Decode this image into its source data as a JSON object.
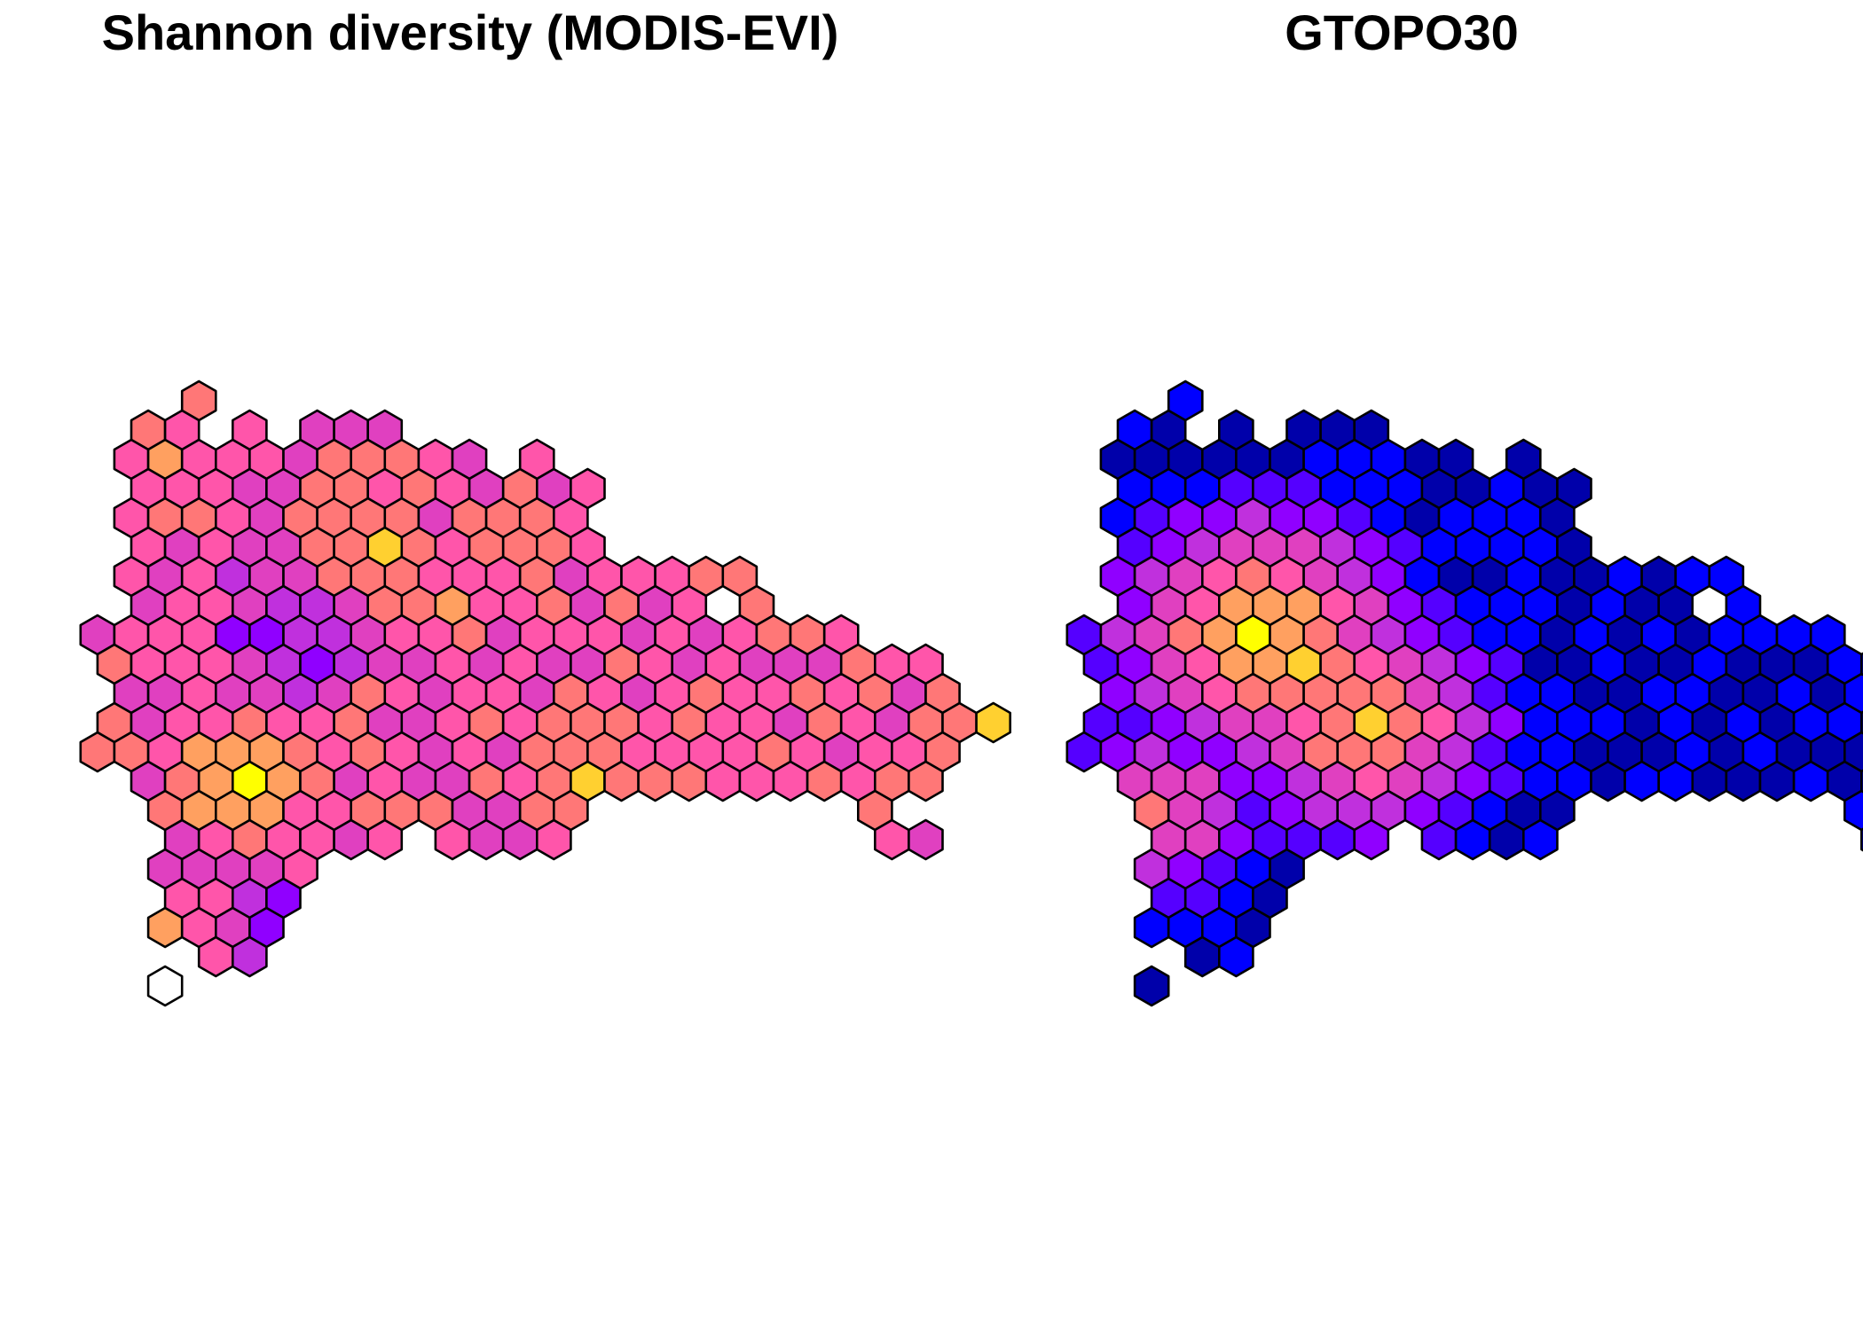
{
  "panels": [
    {
      "id": "modis",
      "title": "Shannon diversity (MODIS-EVI)"
    },
    {
      "id": "gtopo",
      "title": "GTOPO30"
    }
  ],
  "color_scale": [
    "#0000aa",
    "#0000ff",
    "#5500ff",
    "#9000ff",
    "#c030dd",
    "#e040c0",
    "#ff55aa",
    "#ff7777",
    "#ffa060",
    "#ffd030",
    "#ffff00"
  ],
  "hex_rows": [
    {
      "row": 0,
      "cols": [
        2
      ]
    },
    {
      "row": 1,
      "cols": [
        0,
        1,
        3,
        5,
        6,
        7
      ]
    },
    {
      "row": 2,
      "cols": [
        0,
        1,
        2,
        3,
        4,
        5,
        6,
        7,
        8,
        9,
        10,
        12
      ]
    },
    {
      "row": 3,
      "cols": [
        0,
        1,
        2,
        3,
        4,
        5,
        6,
        7,
        8,
        9,
        10,
        11,
        12,
        13
      ]
    },
    {
      "row": 4,
      "cols": [
        0,
        1,
        2,
        3,
        4,
        5,
        6,
        7,
        8,
        9,
        10,
        11,
        12,
        13
      ]
    },
    {
      "row": 5,
      "cols": [
        0,
        1,
        2,
        3,
        4,
        5,
        6,
        7,
        8,
        9,
        10,
        11,
        12,
        13
      ]
    },
    {
      "row": 6,
      "cols": [
        0,
        1,
        2,
        3,
        4,
        5,
        6,
        7,
        8,
        9,
        10,
        11,
        12,
        13,
        14,
        15,
        16,
        17,
        18
      ]
    },
    {
      "row": 7,
      "cols": [
        0,
        1,
        2,
        3,
        4,
        5,
        6,
        7,
        8,
        9,
        10,
        11,
        12,
        13,
        14,
        15,
        16,
        18
      ]
    },
    {
      "row": 8,
      "cols": [
        -1,
        0,
        1,
        2,
        3,
        4,
        5,
        6,
        7,
        8,
        9,
        10,
        11,
        12,
        13,
        14,
        15,
        16,
        17,
        18,
        19,
        20,
        21
      ]
    },
    {
      "row": 9,
      "cols": [
        -1,
        0,
        1,
        2,
        3,
        4,
        5,
        6,
        7,
        8,
        9,
        10,
        11,
        12,
        13,
        14,
        15,
        16,
        17,
        18,
        19,
        20,
        21,
        22,
        23
      ]
    },
    {
      "row": 10,
      "cols": [
        0,
        1,
        2,
        3,
        4,
        5,
        6,
        7,
        8,
        9,
        10,
        11,
        12,
        13,
        14,
        15,
        16,
        17,
        18,
        19,
        20,
        21,
        22,
        23,
        24
      ]
    },
    {
      "row": 11,
      "cols": [
        -1,
        0,
        1,
        2,
        3,
        4,
        5,
        6,
        7,
        8,
        9,
        10,
        11,
        12,
        13,
        14,
        15,
        16,
        17,
        18,
        19,
        20,
        21,
        22,
        23,
        24,
        25
      ]
    },
    {
      "row": 12,
      "cols": [
        -1,
        0,
        1,
        2,
        3,
        4,
        5,
        6,
        7,
        8,
        9,
        10,
        11,
        12,
        13,
        14,
        15,
        16,
        17,
        18,
        19,
        20,
        21,
        22,
        23,
        24
      ]
    },
    {
      "row": 13,
      "cols": [
        0,
        1,
        2,
        3,
        4,
        5,
        6,
        7,
        8,
        9,
        10,
        11,
        12,
        13,
        14,
        15,
        16,
        17,
        18,
        19,
        20,
        21,
        22,
        23
      ]
    },
    {
      "row": 14,
      "cols": [
        1,
        2,
        3,
        4,
        5,
        6,
        7,
        8,
        9,
        10,
        11,
        12,
        13,
        22
      ]
    },
    {
      "row": 15,
      "cols": [
        1,
        2,
        3,
        4,
        5,
        6,
        7,
        9,
        10,
        11,
        12,
        22,
        23
      ]
    },
    {
      "row": 16,
      "cols": [
        1,
        2,
        3,
        4,
        5
      ]
    },
    {
      "row": 17,
      "cols": [
        1,
        2,
        3,
        4
      ]
    },
    {
      "row": 18,
      "cols": [
        1,
        2,
        3,
        4
      ]
    },
    {
      "row": 19,
      "cols": [
        2,
        3
      ]
    },
    {
      "row": 20,
      "cols": [
        1
      ]
    }
  ],
  "map_data": {
    "modis": {
      "hotspots": [
        {
          "row": 13,
          "col": 3,
          "level": 10
        },
        {
          "row": 5,
          "col": 7,
          "level": 9
        },
        {
          "row": 11,
          "col": 25,
          "level": 9
        },
        {
          "row": 13,
          "col": 13,
          "level": 9
        },
        {
          "row": 7,
          "col": 9,
          "level": 8
        },
        {
          "row": 2,
          "col": 1,
          "level": 8
        },
        {
          "row": 18,
          "col": 1,
          "level": 8
        }
      ],
      "empty_cells": [
        {
          "row": 20,
          "col": 1
        },
        {
          "row": 7,
          "col": 17
        }
      ]
    },
    "gtopo": {
      "hotspots": [
        {
          "row": 8,
          "col": 4,
          "level": 10
        },
        {
          "row": 9,
          "col": 5,
          "level": 9
        },
        {
          "row": 11,
          "col": 7,
          "level": 9
        },
        {
          "row": 14,
          "col": 1,
          "level": 7
        }
      ],
      "empty_cells": [
        {
          "row": 7,
          "col": 17
        }
      ]
    }
  }
}
